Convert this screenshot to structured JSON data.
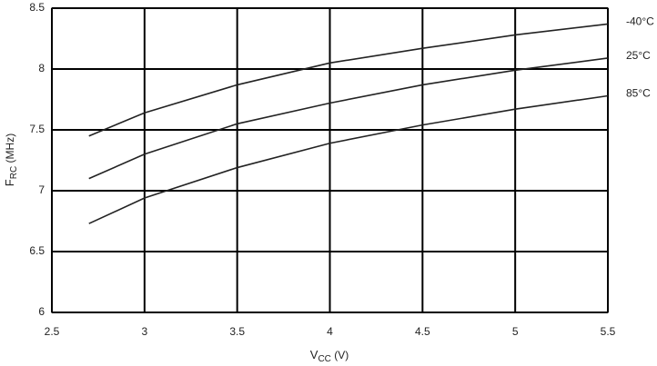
{
  "chart_data": {
    "type": "line",
    "x_label": [
      "V",
      "CC",
      " (V)"
    ],
    "y_label": [
      "F",
      "RC",
      " (MHz)"
    ],
    "x": [
      2.7,
      3.0,
      3.5,
      4.0,
      4.5,
      5.0,
      5.5
    ],
    "series": [
      {
        "name": "-40°C",
        "color": "#222222",
        "values": [
          7.45,
          7.64,
          7.87,
          8.05,
          8.17,
          8.28,
          8.37
        ]
      },
      {
        "name": "25°C",
        "color": "#222222",
        "values": [
          7.1,
          7.3,
          7.55,
          7.72,
          7.87,
          7.99,
          8.09
        ]
      },
      {
        "name": "85°C",
        "color": "#222222",
        "values": [
          6.73,
          6.94,
          7.19,
          7.39,
          7.54,
          7.67,
          7.78
        ]
      }
    ],
    "xlim": [
      2.5,
      5.5
    ],
    "xticks": [
      2.5,
      3,
      3.5,
      4,
      4.5,
      5,
      5.5
    ],
    "ylim": [
      6,
      8.5
    ],
    "yticks": [
      6,
      6.5,
      7,
      7.5,
      8,
      8.5
    ],
    "grid": true
  }
}
